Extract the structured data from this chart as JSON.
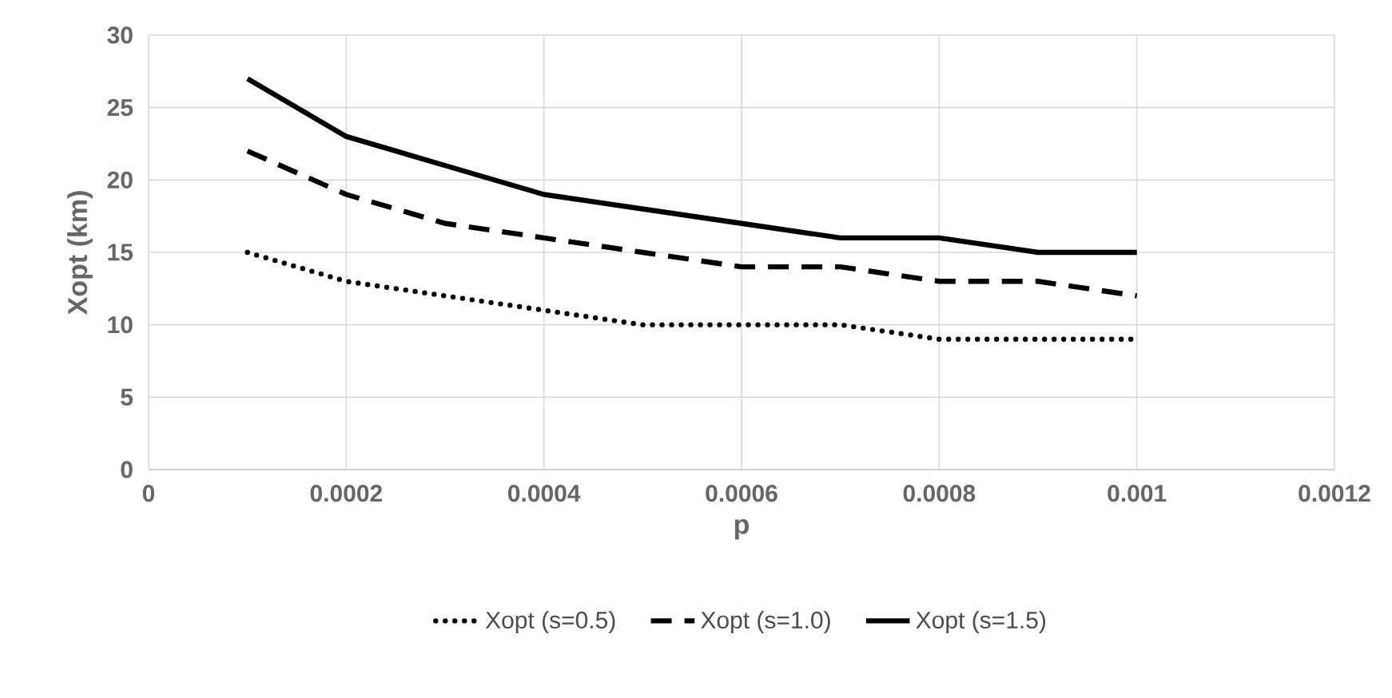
{
  "chart_data": {
    "type": "line",
    "xlabel": "p",
    "ylabel": "Xopt (km)",
    "x": [
      0.0001,
      0.0002,
      0.0003,
      0.0004,
      0.0005,
      0.0006,
      0.0007,
      0.0008,
      0.0009,
      0.001
    ],
    "series": [
      {
        "name": "Xopt (s=0.5)",
        "color": "#000000",
        "line_style": "dotted",
        "values": [
          15,
          13,
          12,
          11,
          10,
          10,
          10,
          9,
          9,
          9
        ]
      },
      {
        "name": "Xopt (s=1.0)",
        "color": "#000000",
        "line_style": "dashed",
        "values": [
          22,
          19,
          17,
          16,
          15,
          14,
          14,
          13,
          13,
          12
        ]
      },
      {
        "name": "Xopt (s=1.5)",
        "color": "#000000",
        "line_style": "solid",
        "values": [
          27,
          23,
          21,
          19,
          18,
          17,
          16,
          16,
          15,
          15
        ]
      }
    ],
    "xlim": [
      0,
      0.0012
    ],
    "ylim": [
      0,
      30
    ],
    "xticks": [
      0,
      0.0002,
      0.0004,
      0.0006,
      0.0008,
      0.001,
      0.0012
    ],
    "yticks": [
      0,
      5,
      10,
      15,
      20,
      25,
      30
    ],
    "grid": true,
    "legend": "bottom"
  }
}
